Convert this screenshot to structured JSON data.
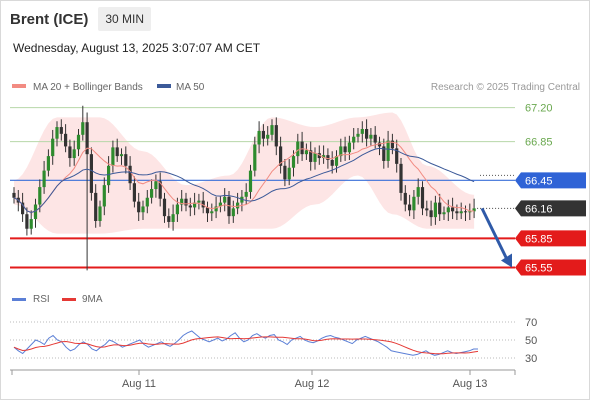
{
  "header": {
    "title": "Brent (ICE)",
    "timeframe": "30 MIN"
  },
  "datetime": "Wednesday, August 13, 2025 3:07:07 AM CET",
  "legend": {
    "bollinger": {
      "label": "MA 20 + Bollinger Bands",
      "color": "#f28b82"
    },
    "ma50": {
      "label": "MA 50",
      "color": "#3c5a99"
    }
  },
  "credit": "Research © 2025 Trading Central",
  "chart_data": {
    "type": "candlestick",
    "ylim": [
      65.4,
      67.3
    ],
    "levels": [
      {
        "value": 67.2,
        "label": "67.20",
        "style": "resistance-green"
      },
      {
        "value": 66.85,
        "label": "66.85",
        "style": "resistance-green"
      },
      {
        "value": 66.45,
        "label": "66.45",
        "style": "pivot-blue"
      },
      {
        "value": 66.16,
        "label": "66.16",
        "style": "last-price"
      },
      {
        "value": 65.85,
        "label": "65.85",
        "style": "support-red"
      },
      {
        "value": 65.55,
        "label": "65.55",
        "style": "support-red"
      }
    ],
    "x_labels": [
      "Aug 11",
      "Aug 12",
      "Aug 13"
    ],
    "close_series": [
      66.27,
      66.22,
      66.1,
      65.95,
      66.05,
      66.2,
      66.38,
      66.55,
      66.7,
      66.88,
      67.0,
      66.93,
      66.8,
      66.68,
      66.77,
      66.92,
      67.05,
      66.72,
      66.32,
      66.03,
      66.18,
      66.4,
      66.6,
      66.79,
      66.7,
      66.72,
      66.6,
      66.42,
      66.23,
      66.12,
      66.18,
      66.27,
      66.36,
      66.44,
      66.26,
      66.08,
      66.02,
      66.1,
      66.2,
      66.26,
      66.19,
      66.17,
      66.22,
      66.24,
      66.17,
      66.11,
      66.13,
      66.18,
      66.22,
      66.28,
      66.08,
      66.16,
      66.22,
      66.28,
      66.33,
      66.55,
      66.82,
      66.96,
      66.88,
      66.92,
      67.02,
      66.8,
      66.6,
      66.46,
      66.58,
      66.7,
      66.85,
      66.72,
      66.76,
      66.64,
      66.73,
      66.68,
      66.71,
      66.66,
      66.6,
      66.7,
      66.8,
      66.74,
      66.84,
      66.9,
      66.93,
      66.98,
      66.88,
      66.92,
      66.84,
      66.8,
      66.65,
      66.86,
      66.78,
      66.62,
      66.32,
      66.2,
      66.14,
      66.28,
      66.38,
      66.16,
      66.14,
      66.07,
      66.22,
      66.1,
      66.12,
      66.17,
      66.13,
      66.11,
      66.13,
      66.12,
      66.13,
      66.16
    ],
    "bands": {
      "upper_start": [
        [
          0,
          66.45
        ],
        [
          10,
          67.1
        ],
        [
          20,
          67.1
        ],
        [
          30,
          66.75
        ],
        [
          40,
          66.4
        ],
        [
          50,
          66.5
        ],
        [
          60,
          67.1
        ],
        [
          70,
          67.0
        ],
        [
          80,
          67.1
        ],
        [
          88,
          67.15
        ],
        [
          96,
          66.6
        ],
        [
          107,
          66.3
        ]
      ],
      "lower_start": [
        [
          0,
          66.2
        ],
        [
          10,
          65.9
        ],
        [
          20,
          65.9
        ],
        [
          30,
          65.95
        ],
        [
          40,
          65.95
        ],
        [
          50,
          65.95
        ],
        [
          60,
          65.95
        ],
        [
          70,
          66.2
        ],
        [
          80,
          66.5
        ],
        [
          88,
          66.1
        ],
        [
          96,
          65.95
        ],
        [
          107,
          65.95
        ]
      ]
    },
    "forecast_arrow": {
      "from": 66.16,
      "to": 65.55
    },
    "rsi": {
      "legend": {
        "rsi_label": "RSI",
        "ma_label": "9MA",
        "rsi_color": "#5b7fd6",
        "ma_color": "#e53935"
      },
      "ylim": [
        20,
        80
      ],
      "ticks": [
        70,
        50,
        30
      ],
      "rsi_values": [
        42,
        38,
        35,
        40,
        45,
        50,
        48,
        45,
        52,
        55,
        50,
        48,
        42,
        38,
        40,
        45,
        48,
        45,
        40,
        38,
        42,
        45,
        50,
        48,
        45,
        42,
        44,
        46,
        48,
        50,
        45,
        42,
        44,
        46,
        48,
        45,
        43,
        46,
        50,
        55,
        58,
        60,
        56,
        52,
        50,
        48,
        50,
        52,
        49,
        51,
        55,
        58,
        52,
        48,
        50,
        55,
        57,
        54,
        52,
        55,
        56,
        50,
        48,
        45,
        50,
        52,
        54,
        50,
        48,
        47,
        49,
        52,
        54,
        55,
        53,
        52,
        50,
        48,
        46,
        50,
        52,
        54,
        52,
        50,
        48,
        45,
        42,
        38,
        37,
        36,
        35,
        34,
        33,
        34,
        36,
        38,
        35,
        33,
        34,
        36,
        38,
        36,
        35,
        36,
        37,
        38,
        40,
        40
      ]
    }
  }
}
